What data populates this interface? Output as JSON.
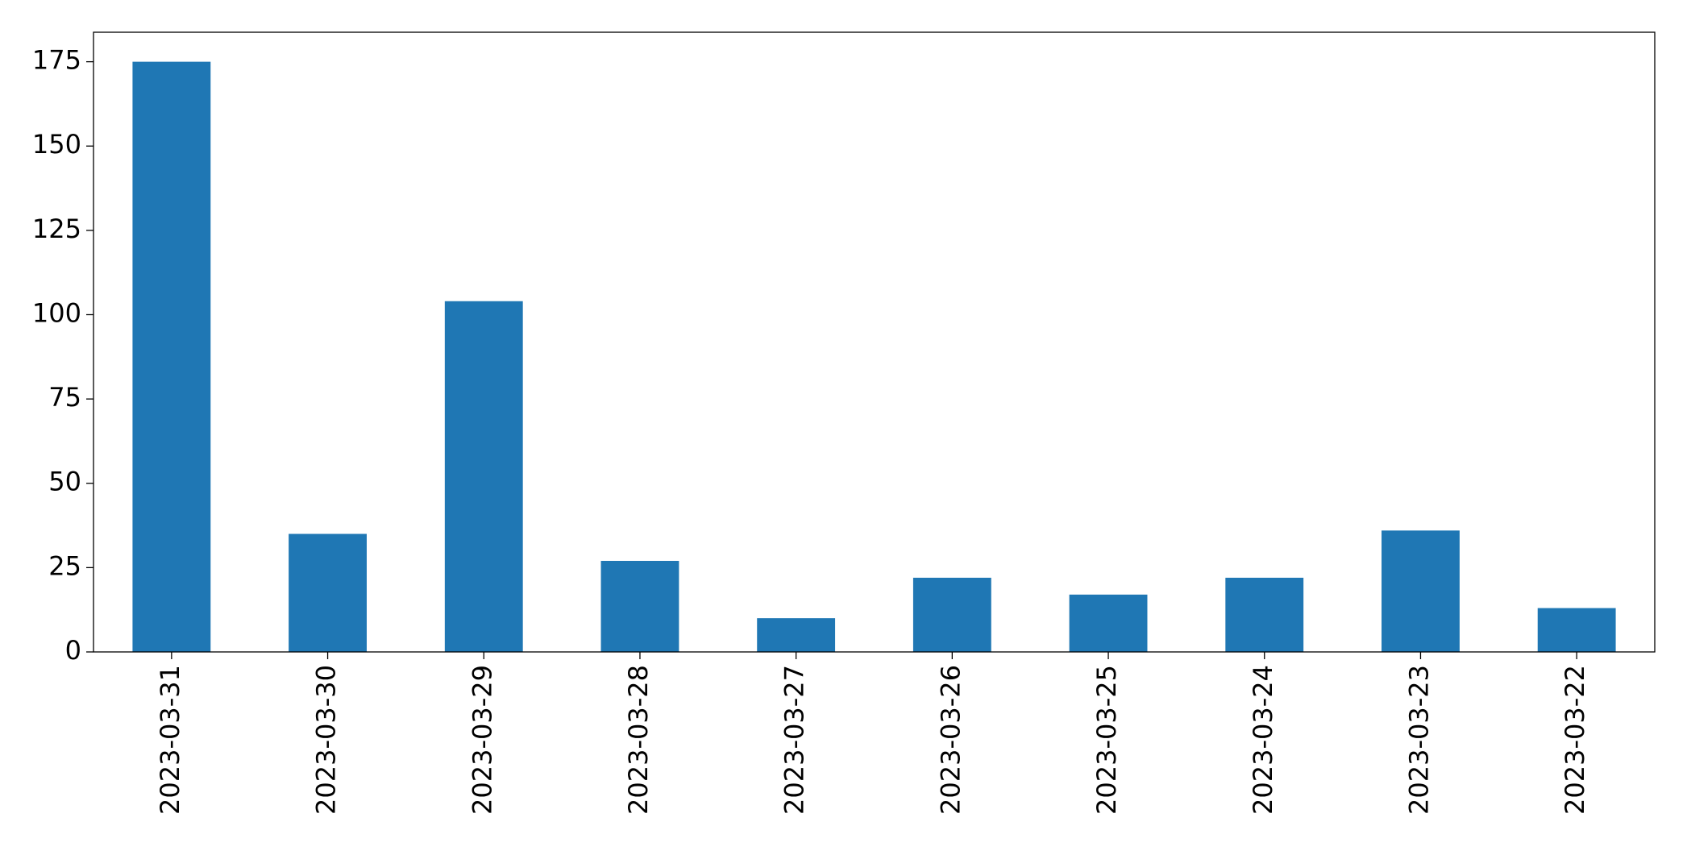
{
  "chart_data": {
    "type": "bar",
    "categories": [
      "2023-03-31",
      "2023-03-30",
      "2023-03-29",
      "2023-03-28",
      "2023-03-27",
      "2023-03-26",
      "2023-03-25",
      "2023-03-24",
      "2023-03-23",
      "2023-03-22"
    ],
    "values": [
      175,
      35,
      104,
      27,
      10,
      22,
      17,
      22,
      36,
      13
    ],
    "color": "#1f77b4",
    "ylim": [
      0,
      183.75
    ],
    "yticks": [
      0,
      25,
      50,
      75,
      100,
      125,
      150,
      175
    ],
    "grid": false
  }
}
